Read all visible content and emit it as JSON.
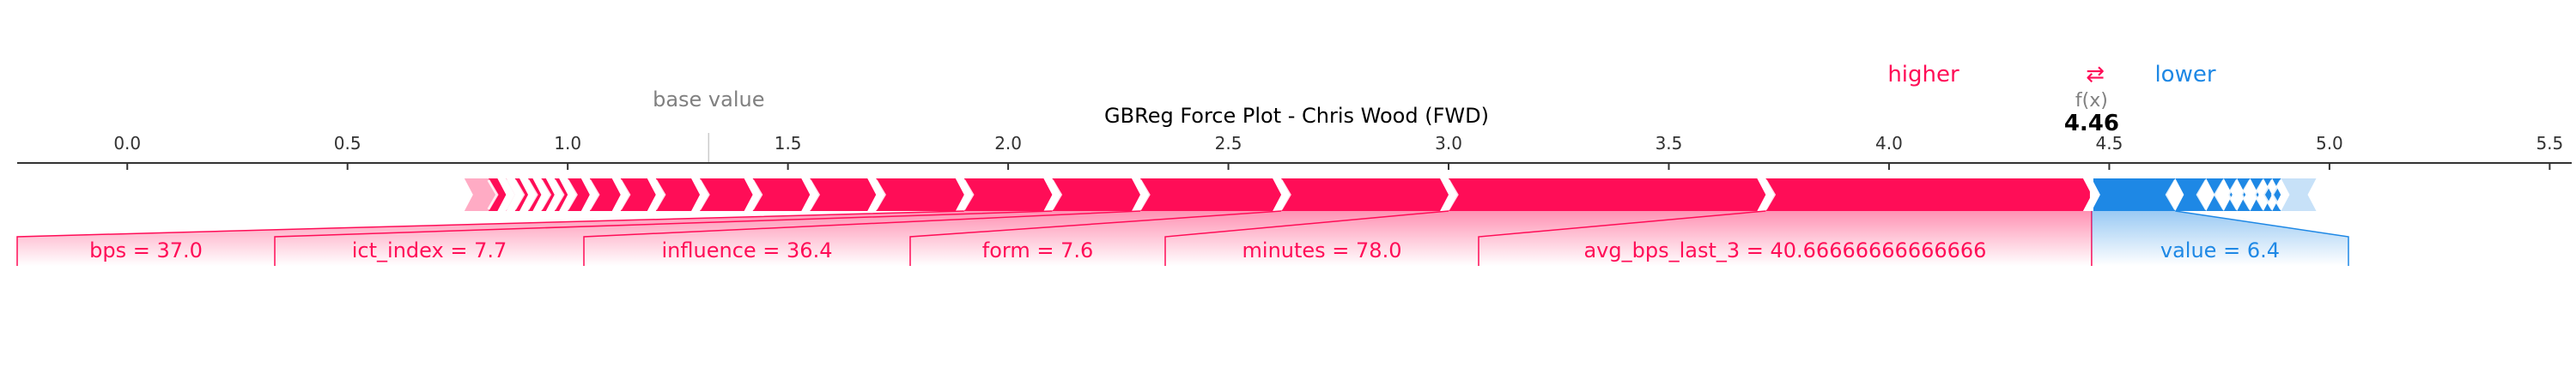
{
  "chart_data": {
    "type": "force_plot",
    "title": "GBReg Force Plot - Chris Wood (FWD)",
    "legend": {
      "higher": "higher",
      "arrows": "⇄",
      "lower": "lower"
    },
    "base_value_label": "base value",
    "fx_label": "f(x)",
    "output_value": 4.46,
    "output_label": "4.46",
    "base_value": 1.32,
    "xlim": [
      -0.25,
      5.55
    ],
    "ticks": [
      0.0,
      0.5,
      1.0,
      1.5,
      2.0,
      2.5,
      3.0,
      3.5,
      4.0,
      4.5,
      5.0,
      5.5
    ],
    "tick_labels": [
      "0.0",
      "0.5",
      "1.0",
      "1.5",
      "2.0",
      "2.5",
      "3.0",
      "3.5",
      "4.0",
      "4.5",
      "5.0",
      "5.5"
    ],
    "positive_features": [
      {
        "label": "avg_bps_last_3 = 40.66666666666666",
        "start": 3.72,
        "end": 4.46
      },
      {
        "label": "minutes = 78.0",
        "start": 3.0,
        "end": 3.72
      },
      {
        "label": "form = 7.6",
        "start": 2.62,
        "end": 3.0
      },
      {
        "label": "influence = 36.4",
        "start": 2.3,
        "end": 2.62
      },
      {
        "label": "ict_index = 7.7",
        "start": 2.1,
        "end": 2.3
      },
      {
        "label": "bps = 37.0",
        "start": 1.9,
        "end": 2.1
      }
    ],
    "positive_small_boundaries": [
      1.7,
      1.55,
      1.42,
      1.3,
      1.2,
      1.12,
      1.05,
      1.0,
      0.97,
      0.94,
      0.91,
      0.88,
      0.86
    ],
    "positive_tail_start": 0.82,
    "negative_features": [
      {
        "label": "value = 6.4",
        "start": 4.46,
        "end": 4.65
      }
    ],
    "negative_small_boundaries": [
      4.72,
      4.76,
      4.79,
      4.82,
      4.85,
      4.87,
      4.89
    ],
    "negative_tail_end": 4.97,
    "colors": {
      "positive": "#ff0d57",
      "negative": "#1e88e5",
      "axis": "#333333",
      "muted": "#808080"
    }
  }
}
